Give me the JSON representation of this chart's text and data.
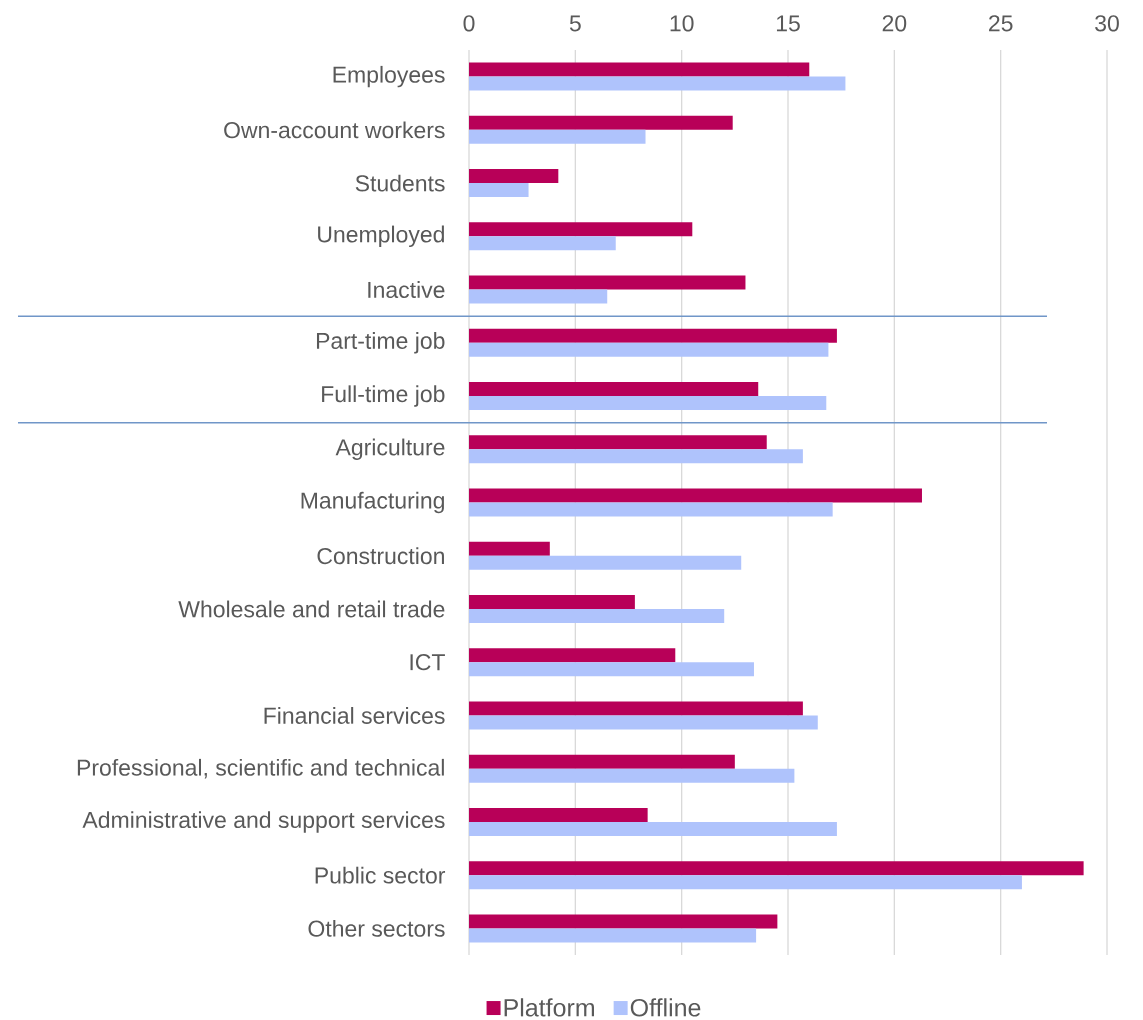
{
  "chart_data": {
    "type": "bar",
    "orientation": "horizontal",
    "categories": [
      "Employees",
      "Own-account workers",
      "Students",
      "Unemployed",
      "Inactive",
      "Part-time job",
      "Full-time job",
      "Agriculture",
      "Manufacturing",
      "Construction",
      "Wholesale and retail trade",
      "ICT",
      "Financial services",
      "Professional, scientific and technical",
      "Administrative and support services",
      "Public sector",
      "Other sectors"
    ],
    "series": [
      {
        "name": "Platform",
        "color": "#b80058",
        "values": [
          16.0,
          12.4,
          4.2,
          10.5,
          13.0,
          17.3,
          13.6,
          14.0,
          21.3,
          3.8,
          7.8,
          9.7,
          15.7,
          12.5,
          8.4,
          28.9,
          14.5
        ]
      },
      {
        "name": "Offline",
        "color": "#afc3fc",
        "values": [
          17.7,
          8.3,
          2.8,
          6.9,
          6.5,
          16.9,
          16.8,
          15.7,
          17.1,
          12.8,
          12.0,
          13.4,
          16.4,
          15.3,
          17.3,
          26.0,
          13.5
        ]
      }
    ],
    "xlim": [
      0,
      30
    ],
    "xticks": [
      0,
      5,
      10,
      15,
      20,
      25,
      30
    ],
    "grid": "x",
    "legend": "bottom"
  }
}
